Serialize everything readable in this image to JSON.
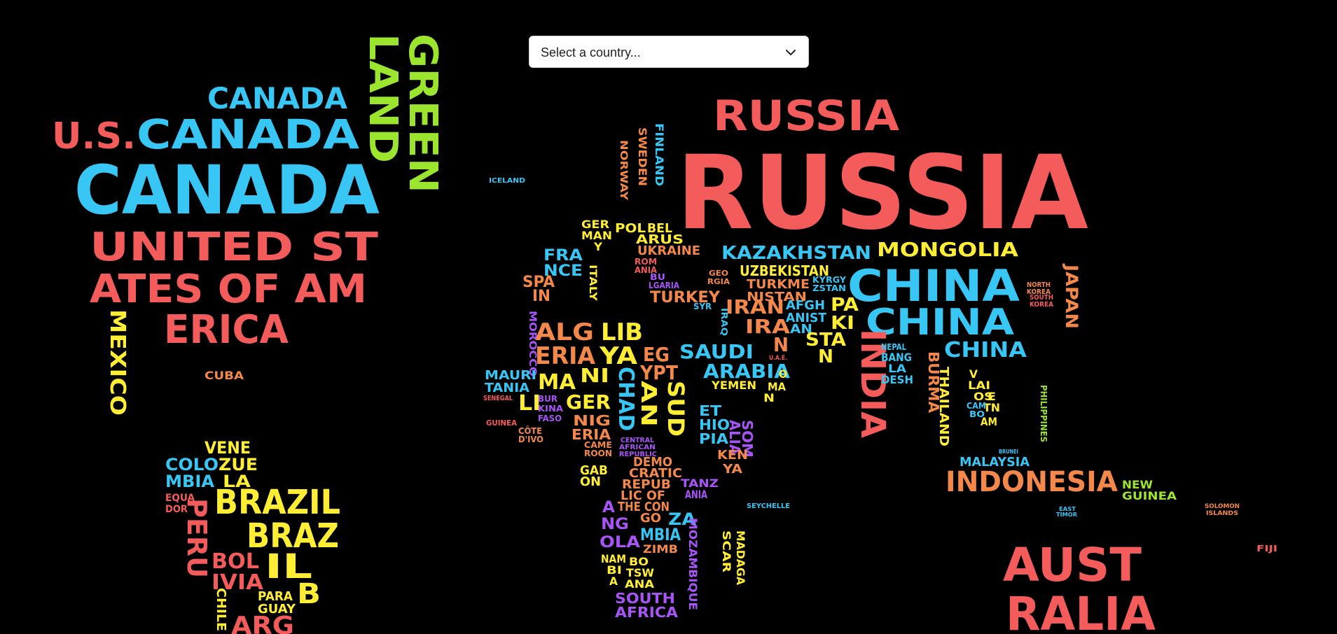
{
  "country_select": {
    "placeholder": "Select a country...",
    "icon": "chevron-down-icon"
  },
  "colors": {
    "background": "#000000",
    "red": "#f45b5b",
    "blue": "#38c6f4",
    "green": "#9be52e",
    "yellow": "#ffee33",
    "orange": "#f4884a",
    "purple": "#a855f7"
  },
  "words": [
    {
      "id": "green-land-1",
      "text": "GREEN"
    },
    {
      "id": "green-land-2",
      "text": "LAND"
    },
    {
      "id": "canada-1",
      "text": "CANADA"
    },
    {
      "id": "us",
      "text": "U.S."
    },
    {
      "id": "canada-2",
      "text": "CANADA"
    },
    {
      "id": "canada-3",
      "text": "CANADA"
    },
    {
      "id": "usa-1",
      "text": "UNITED ST"
    },
    {
      "id": "usa-2",
      "text": "ATES OF AM"
    },
    {
      "id": "usa-3",
      "text": "ERICA"
    },
    {
      "id": "mexico",
      "text": "MEXICO"
    },
    {
      "id": "cuba",
      "text": "CUBA"
    },
    {
      "id": "venezuela-1",
      "text": "VENE"
    },
    {
      "id": "venezuela-2",
      "text": "ZUE"
    },
    {
      "id": "venezuela-3",
      "text": "LA"
    },
    {
      "id": "colombia-1",
      "text": "COLO"
    },
    {
      "id": "colombia-2",
      "text": "MBIA"
    },
    {
      "id": "ecuador-1",
      "text": "EQUA"
    },
    {
      "id": "ecuador-2",
      "text": "DOR"
    },
    {
      "id": "peru",
      "text": "PERU"
    },
    {
      "id": "brazil-1",
      "text": "BRAZIL"
    },
    {
      "id": "brazil-2",
      "text": "BRAZ"
    },
    {
      "id": "brazil-3",
      "text": "IL"
    },
    {
      "id": "bolivia-1",
      "text": "BOL"
    },
    {
      "id": "bolivia-2",
      "text": "IVIA"
    },
    {
      "id": "chile",
      "text": "CHILE"
    },
    {
      "id": "paraguay-1",
      "text": "PARA"
    },
    {
      "id": "paraguay-2",
      "text": "GUAY"
    },
    {
      "id": "argentina",
      "text": "ARG"
    },
    {
      "id": "b",
      "text": "B"
    },
    {
      "id": "iceland",
      "text": "ICELAND"
    },
    {
      "id": "norway",
      "text": "NORWAY"
    },
    {
      "id": "sweden",
      "text": "SWEDEN"
    },
    {
      "id": "finland",
      "text": "FINLAND"
    },
    {
      "id": "russia-1",
      "text": "RUSSIA"
    },
    {
      "id": "russia-2",
      "text": "RUSSIA"
    },
    {
      "id": "germany-1",
      "text": "GER"
    },
    {
      "id": "germany-2",
      "text": "MAN"
    },
    {
      "id": "germany-3",
      "text": "Y"
    },
    {
      "id": "poland",
      "text": "POL"
    },
    {
      "id": "belarus-1",
      "text": "BEL"
    },
    {
      "id": "belarus-2",
      "text": "ARUS"
    },
    {
      "id": "ukraine",
      "text": "UKRAINE"
    },
    {
      "id": "france-1",
      "text": "FRA"
    },
    {
      "id": "france-2",
      "text": "NCE"
    },
    {
      "id": "italy",
      "text": "ITALY"
    },
    {
      "id": "romania-1",
      "text": "ROM"
    },
    {
      "id": "romania-2",
      "text": "ANIA"
    },
    {
      "id": "bulgaria-1",
      "text": "BU"
    },
    {
      "id": "bulgaria-2",
      "text": "LGARIA"
    },
    {
      "id": "spain-1",
      "text": "SPA"
    },
    {
      "id": "spain-2",
      "text": "IN"
    },
    {
      "id": "turkey",
      "text": "TURKEY"
    },
    {
      "id": "kazakhstan",
      "text": "KAZAKHSTAN"
    },
    {
      "id": "mongolia",
      "text": "MONGOLIA"
    },
    {
      "id": "uzbekistan",
      "text": "UZBEKISTAN"
    },
    {
      "id": "turkmenistan-1",
      "text": "TURKME"
    },
    {
      "id": "turkmenistan-2",
      "text": "NISTAN"
    },
    {
      "id": "kyrgyzstan-1",
      "text": "KYRGY"
    },
    {
      "id": "kyrgyzstan-2",
      "text": "ZSTAN"
    },
    {
      "id": "china-1",
      "text": "CHINA"
    },
    {
      "id": "china-2",
      "text": "CHINA"
    },
    {
      "id": "china-3",
      "text": "CHINA"
    },
    {
      "id": "japan",
      "text": "JAPAN"
    },
    {
      "id": "north-korea-1",
      "text": "NORTH"
    },
    {
      "id": "north-korea-2",
      "text": "KOREA"
    },
    {
      "id": "south-korea-1",
      "text": "SOUTH"
    },
    {
      "id": "south-korea-2",
      "text": "KOREA"
    },
    {
      "id": "iran-1",
      "text": "IRAN"
    },
    {
      "id": "iran-2",
      "text": "IRA"
    },
    {
      "id": "iran-3",
      "text": "N"
    },
    {
      "id": "afghanistan-1",
      "text": "AFGH"
    },
    {
      "id": "afghanistan-2",
      "text": "ANIST"
    },
    {
      "id": "afghanistan-3",
      "text": "AN"
    },
    {
      "id": "pakistan-1",
      "text": "PA"
    },
    {
      "id": "pakistan-2",
      "text": "KI"
    },
    {
      "id": "pakistan-3",
      "text": "STA"
    },
    {
      "id": "pakistan-4",
      "text": "N"
    },
    {
      "id": "iraq",
      "text": "IRAQ"
    },
    {
      "id": "syria",
      "text": "SYR"
    },
    {
      "id": "georgia-1",
      "text": "GEO"
    },
    {
      "id": "georgia-2",
      "text": "RGIA"
    },
    {
      "id": "saudi-1",
      "text": "SAUDI"
    },
    {
      "id": "saudi-2",
      "text": "ARABIA"
    },
    {
      "id": "yemen",
      "text": "YEMEN"
    },
    {
      "id": "oman-1",
      "text": "O"
    },
    {
      "id": "oman-2",
      "text": "MA"
    },
    {
      "id": "oman-3",
      "text": "N"
    },
    {
      "id": "india",
      "text": "INDIA"
    },
    {
      "id": "nepal",
      "text": "NEPAL"
    },
    {
      "id": "bangladesh-1",
      "text": "BANG"
    },
    {
      "id": "bangladesh-2",
      "text": "LA"
    },
    {
      "id": "bangladesh-3",
      "text": "DESH"
    },
    {
      "id": "burma",
      "text": "BURMA"
    },
    {
      "id": "thailand",
      "text": "THAILAND"
    },
    {
      "id": "laos-1",
      "text": "LAI"
    },
    {
      "id": "laos-2",
      "text": "OS"
    },
    {
      "id": "vietnam-1",
      "text": "V"
    },
    {
      "id": "vietnam-2",
      "text": "E"
    },
    {
      "id": "vietnam-3",
      "text": "TN"
    },
    {
      "id": "vietnam-4",
      "text": "AM"
    },
    {
      "id": "cambodia-1",
      "text": "CAM"
    },
    {
      "id": "cambodia-2",
      "text": "BO"
    },
    {
      "id": "philippines",
      "text": "PHILIPPINES"
    },
    {
      "id": "malaysia",
      "text": "MALAYSIA"
    },
    {
      "id": "indonesia",
      "text": "INDONESIA"
    },
    {
      "id": "new-guinea-1",
      "text": "NEW"
    },
    {
      "id": "new-guinea-2",
      "text": "GUINEA"
    },
    {
      "id": "australia-1",
      "text": "AUST"
    },
    {
      "id": "australia-2",
      "text": "RALIA"
    },
    {
      "id": "fiji",
      "text": "FIJI"
    },
    {
      "id": "solomon-1",
      "text": "SOLOMON"
    },
    {
      "id": "solomon-2",
      "text": "ISLANDS"
    },
    {
      "id": "east-timor-1",
      "text": "EAST"
    },
    {
      "id": "east-timor-2",
      "text": "TIMOR"
    },
    {
      "id": "algeria-1",
      "text": "ALG"
    },
    {
      "id": "algeria-2",
      "text": "ERIA"
    },
    {
      "id": "libya-1",
      "text": "LIB"
    },
    {
      "id": "libya-2",
      "text": "YA"
    },
    {
      "id": "egypt-1",
      "text": "EG"
    },
    {
      "id": "egypt-2",
      "text": "YPT"
    },
    {
      "id": "morocco",
      "text": "MOROCCO"
    },
    {
      "id": "mauritania-1",
      "text": "MAURI"
    },
    {
      "id": "mauritania-2",
      "text": "TANIA"
    },
    {
      "id": "mali-1",
      "text": "MA"
    },
    {
      "id": "mali-2",
      "text": "LI"
    },
    {
      "id": "niger-1",
      "text": "NI"
    },
    {
      "id": "niger-2",
      "text": "GER"
    },
    {
      "id": "chad",
      "text": "CHAD"
    },
    {
      "id": "sudan-1",
      "text": "SUD"
    },
    {
      "id": "sudan-2",
      "text": "AN"
    },
    {
      "id": "nigeria-1",
      "text": "NIG"
    },
    {
      "id": "nigeria-2",
      "text": "ERIA"
    },
    {
      "id": "ethiopia-1",
      "text": "ET"
    },
    {
      "id": "ethiopia-2",
      "text": "HIO"
    },
    {
      "id": "ethiopia-3",
      "text": "PIA"
    },
    {
      "id": "somalia-1",
      "text": "SOM"
    },
    {
      "id": "somalia-2",
      "text": "ALIA"
    },
    {
      "id": "kenya-1",
      "text": "KEN"
    },
    {
      "id": "kenya-2",
      "text": "YA"
    },
    {
      "id": "cameroon-1",
      "text": "CAME"
    },
    {
      "id": "cameroon-2",
      "text": "ROON"
    },
    {
      "id": "car-1",
      "text": "CENTRAL"
    },
    {
      "id": "car-2",
      "text": "AFRICAN"
    },
    {
      "id": "car-3",
      "text": "REPUBLIC"
    },
    {
      "id": "gabon-1",
      "text": "GAB"
    },
    {
      "id": "gabon-2",
      "text": "ON"
    },
    {
      "id": "drc-1",
      "text": "DEMO"
    },
    {
      "id": "drc-2",
      "text": "CRATIC"
    },
    {
      "id": "drc-3",
      "text": "REPUB"
    },
    {
      "id": "drc-4",
      "text": "LIC OF"
    },
    {
      "id": "drc-5",
      "text": "THE CON"
    },
    {
      "id": "drc-6",
      "text": "GO"
    },
    {
      "id": "tanzania-1",
      "text": "TANZ"
    },
    {
      "id": "tanzania-2",
      "text": "ANIA"
    },
    {
      "id": "angola-1",
      "text": "A"
    },
    {
      "id": "angola-2",
      "text": "NG"
    },
    {
      "id": "angola-3",
      "text": "OLA"
    },
    {
      "id": "zambia-1",
      "text": "ZA"
    },
    {
      "id": "zambia-2",
      "text": "MBIA"
    },
    {
      "id": "zimbabwe",
      "text": "ZIMB"
    },
    {
      "id": "mozambique",
      "text": "MOZAMBIQUE"
    },
    {
      "id": "madagascar-1",
      "text": "MADAGA"
    },
    {
      "id": "madagascar-2",
      "text": "SCAR"
    },
    {
      "id": "namibia-1",
      "text": "NAM"
    },
    {
      "id": "namibia-2",
      "text": "BI"
    },
    {
      "id": "namibia-3",
      "text": "A"
    },
    {
      "id": "botswana-1",
      "text": "BO"
    },
    {
      "id": "botswana-2",
      "text": "TSW"
    },
    {
      "id": "botswana-3",
      "text": "ANA"
    },
    {
      "id": "south-africa-1",
      "text": "SOUTH"
    },
    {
      "id": "south-africa-2",
      "text": "AFRICA"
    },
    {
      "id": "senegal",
      "text": "SENEGAL"
    },
    {
      "id": "guinea",
      "text": "GUINEA"
    },
    {
      "id": "burkina-1",
      "text": "BUR"
    },
    {
      "id": "burkina-2",
      "text": "KINA"
    },
    {
      "id": "burkina-3",
      "text": "FASO"
    },
    {
      "id": "cote-divoire-1",
      "text": "CÔTE"
    },
    {
      "id": "cote-divoire-2",
      "text": "D'IVO"
    },
    {
      "id": "seychelle",
      "text": "SEYCHELLE"
    },
    {
      "id": "uae",
      "text": "U.A.E."
    },
    {
      "id": "brunei",
      "text": "BRUNEI"
    }
  ]
}
